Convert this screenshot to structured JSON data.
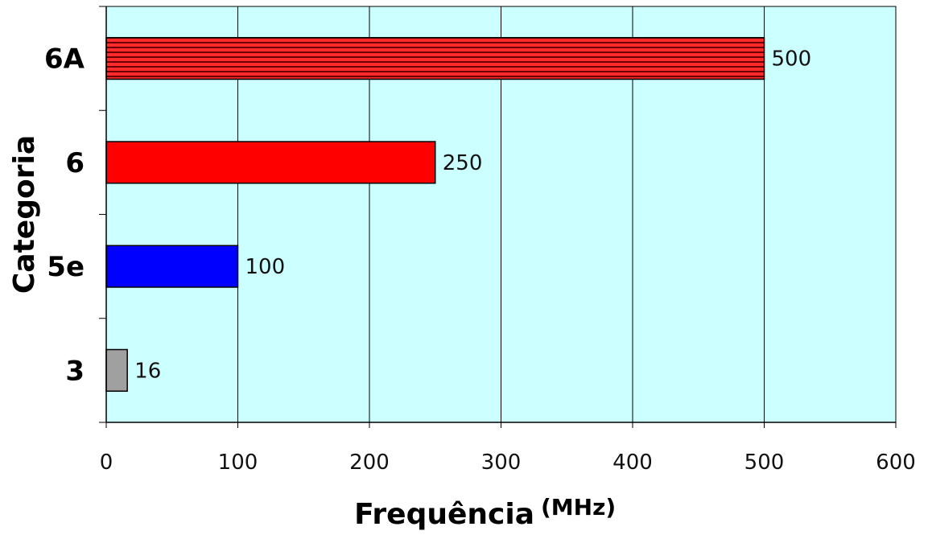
{
  "chart_data": {
    "type": "bar",
    "orientation": "horizontal",
    "categories": [
      "3",
      "5e",
      "6",
      "6A"
    ],
    "values": [
      16,
      100,
      250,
      500
    ],
    "bar_colors": [
      "#a0a0a0",
      "#0000ff",
      "#ff0000",
      "#cc0000"
    ],
    "bar_patterns": [
      "solid",
      "solid",
      "solid",
      "horizontal-stripes"
    ],
    "data_labels": [
      "16",
      "100",
      "250",
      "500"
    ],
    "title": "",
    "xlabel": "Frequência",
    "xlabel_unit": "(MHz)",
    "ylabel": "Categoria",
    "xlim": [
      0,
      600
    ],
    "x_ticks": [
      "0",
      "100",
      "200",
      "300",
      "400",
      "500",
      "600"
    ],
    "grid": "vertical",
    "plot_background": "#ccffff",
    "legend": "none"
  }
}
